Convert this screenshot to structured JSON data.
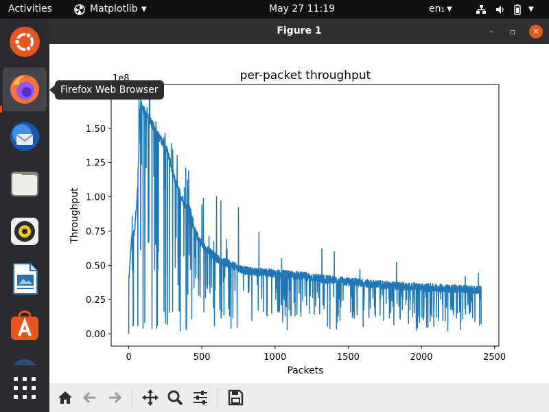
{
  "top_bar": {
    "activities": "Activities",
    "app_menu": "Matplotlib",
    "clock": "May 27  11:19",
    "keyboard_layout": "en₁",
    "icons": [
      "network-icon",
      "volume-icon",
      "battery-icon",
      "chevron-down-icon"
    ]
  },
  "dock": {
    "items": [
      {
        "name": "Ubuntu",
        "icon": "ubuntu-logo-icon"
      },
      {
        "name": "Firefox",
        "icon": "firefox-icon"
      },
      {
        "name": "Thunderbird",
        "icon": "thunderbird-icon"
      },
      {
        "name": "Files",
        "icon": "files-icon"
      },
      {
        "name": "Rhythmbox",
        "icon": "rhythmbox-icon"
      },
      {
        "name": "LibreOffice Writer",
        "icon": "writer-icon"
      },
      {
        "name": "Ubuntu Software",
        "icon": "software-icon"
      },
      {
        "name": "Help",
        "icon": "help-icon"
      }
    ],
    "apps_grid_icon": "grid-icon",
    "tooltip": "Firefox Web Browser"
  },
  "window": {
    "title": "Figure 1",
    "controls": {
      "minimize": "–",
      "maximize": "▫",
      "close": "✕"
    }
  },
  "toolbar": {
    "buttons": [
      "home-icon",
      "back-icon",
      "forward-icon",
      "pan-icon",
      "zoom-icon",
      "configure-icon",
      "save-icon"
    ]
  },
  "colors": {
    "series": "#1f77b4",
    "accent": "#e95420",
    "topbar": "#111111",
    "dock": "#2b2b2f",
    "titlebar": "#303030",
    "toolbar": "#ededed"
  },
  "chart_data": {
    "type": "line",
    "title": "per-packet throughput",
    "xlabel": "Packets",
    "ylabel": "Throughput",
    "offset_text": "1e8",
    "xlim": [
      -120,
      2530
    ],
    "ylim": [
      -0.09,
      1.82
    ],
    "xticks": [
      0,
      500,
      1000,
      1500,
      2000,
      2500
    ],
    "xtick_labels": [
      "0",
      "500",
      "1000",
      "1500",
      "2000",
      "2500"
    ],
    "yticks": [
      0.0,
      0.25,
      0.5,
      0.75,
      1.0,
      1.25,
      1.5
    ],
    "ytick_labels": [
      "0.00",
      "0.25",
      "0.50",
      "0.75",
      "1.00",
      "1.25",
      "1.50"
    ],
    "grid": false,
    "series": [
      {
        "name": "throughput",
        "n": 2410
      }
    ],
    "trend_points": [
      [
        0,
        0.38
      ],
      [
        20,
        0.7
      ],
      [
        40,
        0.75
      ],
      [
        60,
        1.05
      ],
      [
        80,
        1.68
      ],
      [
        110,
        1.62
      ],
      [
        150,
        1.55
      ],
      [
        200,
        1.45
      ],
      [
        260,
        1.35
      ],
      [
        320,
        1.1
      ],
      [
        380,
        0.95
      ],
      [
        420,
        0.9
      ],
      [
        450,
        0.75
      ],
      [
        500,
        0.65
      ],
      [
        600,
        0.55
      ],
      [
        700,
        0.5
      ],
      [
        800,
        0.46
      ],
      [
        1000,
        0.44
      ],
      [
        1200,
        0.42
      ],
      [
        1400,
        0.39
      ],
      [
        1600,
        0.37
      ],
      [
        1800,
        0.35
      ],
      [
        2000,
        0.34
      ],
      [
        2200,
        0.33
      ],
      [
        2410,
        0.32
      ]
    ],
    "peaks": [
      [
        70,
        1.72
      ],
      [
        90,
        1.65
      ],
      [
        185,
        1.5
      ],
      [
        240,
        1.43
      ],
      [
        390,
        1.21
      ],
      [
        410,
        1.19
      ],
      [
        500,
        0.94
      ],
      [
        510,
        0.99
      ],
      [
        600,
        1.0
      ],
      [
        630,
        0.97
      ],
      [
        750,
        0.92
      ],
      [
        890,
        0.74
      ],
      [
        1045,
        0.55
      ],
      [
        1320,
        0.62
      ],
      [
        1405,
        0.6
      ],
      [
        1580,
        0.47
      ],
      [
        1830,
        0.52
      ],
      [
        2300,
        0.42
      ],
      [
        2390,
        0.44
      ]
    ]
  }
}
